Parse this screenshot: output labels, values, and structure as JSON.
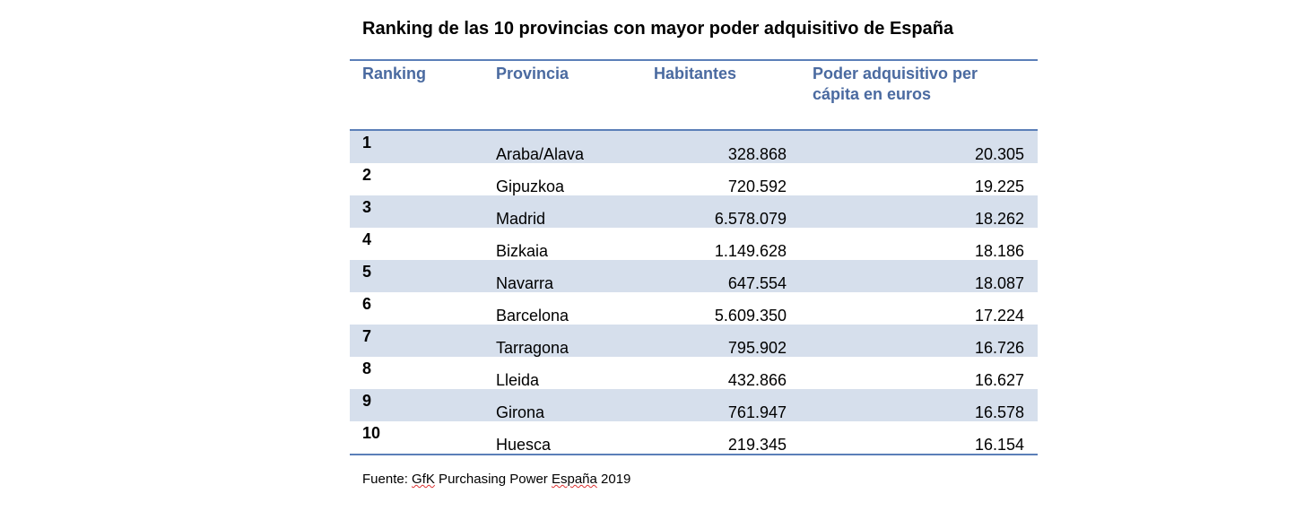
{
  "title": "Ranking de las 10 provincias con mayor poder adquisitivo de España",
  "headers": {
    "ranking": "Ranking",
    "provincia": "Provincia",
    "habitantes": "Habitantes",
    "poder_line1": "Poder adquisitivo per",
    "poder_line2": "cápita en euros"
  },
  "rows": [
    {
      "rank": "1",
      "provincia": "Araba/Alava",
      "habitantes": "328.868",
      "poder": "20.305"
    },
    {
      "rank": "2",
      "provincia": "Gipuzkoa",
      "habitantes": "720.592",
      "poder": "19.225"
    },
    {
      "rank": "3",
      "provincia": "Madrid",
      "habitantes": "6.578.079",
      "poder": "18.262"
    },
    {
      "rank": "4",
      "provincia": "Bizkaia",
      "habitantes": "1.149.628",
      "poder": "18.186"
    },
    {
      "rank": "5",
      "provincia": "Navarra",
      "habitantes": "647.554",
      "poder": "18.087"
    },
    {
      "rank": "6",
      "provincia": "Barcelona",
      "habitantes": "5.609.350",
      "poder": "17.224"
    },
    {
      "rank": "7",
      "provincia": "Tarragona",
      "habitantes": "795.902",
      "poder": "16.726"
    },
    {
      "rank": "8",
      "provincia": "Lleida",
      "habitantes": "432.866",
      "poder": "16.627"
    },
    {
      "rank": "9",
      "provincia": "Girona",
      "habitantes": "761.947",
      "poder": "16.578"
    },
    {
      "rank": "10",
      "provincia": "Huesca",
      "habitantes": "219.345",
      "poder": "16.154"
    }
  ],
  "footer": {
    "prefix": "Fuente: ",
    "gfk": "GfK",
    "middle": " Purchasing Power ",
    "espana": "España",
    "suffix": " 2019"
  },
  "colors": {
    "header_text": "#4a6aa0",
    "rule": "#5b7fb8",
    "row_shade": "#d6dfec"
  }
}
